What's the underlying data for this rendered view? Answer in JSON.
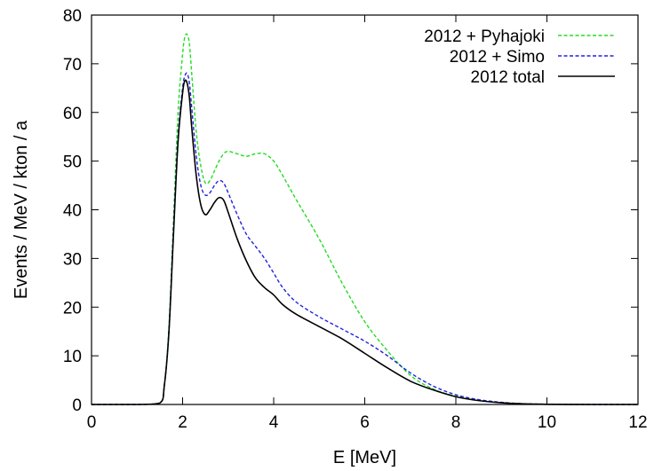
{
  "chart_data": {
    "type": "line",
    "title": "",
    "xlabel": "E [MeV]",
    "ylabel": "Events / MeV / kton / a",
    "xlim": [
      0,
      12
    ],
    "ylim": [
      0,
      80
    ],
    "xticks": [
      0,
      2,
      4,
      6,
      8,
      10,
      12
    ],
    "yticks": [
      0,
      10,
      20,
      30,
      40,
      50,
      60,
      70,
      80
    ],
    "grid": false,
    "legend_position": "top-right",
    "series": [
      {
        "name": "2012 + Pyhajoki",
        "color": "#22dd22",
        "dash": "dashed",
        "x": [
          0,
          1.0,
          1.5,
          1.6,
          1.7,
          1.8,
          1.9,
          2.0,
          2.05,
          2.1,
          2.15,
          2.2,
          2.3,
          2.4,
          2.5,
          2.6,
          2.7,
          2.8,
          2.9,
          3.0,
          3.2,
          3.4,
          3.6,
          3.8,
          4.0,
          4.2,
          4.5,
          5.0,
          5.5,
          6.0,
          6.5,
          7.0,
          7.5,
          8.0,
          8.5,
          9.0,
          9.5,
          10.0,
          10.5,
          11.0,
          12.0
        ],
        "y": [
          0,
          0,
          0.3,
          4,
          16,
          38,
          60,
          72,
          75.5,
          76,
          74,
          68,
          56,
          49,
          45.5,
          46,
          48,
          50,
          51.5,
          52,
          51.5,
          51,
          51.5,
          51.5,
          50,
          47,
          42,
          34,
          25,
          17,
          11,
          6,
          3.2,
          1.7,
          0.9,
          0.4,
          0.15,
          0.05,
          0.02,
          0,
          0
        ]
      },
      {
        "name": "2012 + Simo",
        "color": "#2222dd",
        "dash": "dashed",
        "x": [
          0,
          1.0,
          1.5,
          1.6,
          1.7,
          1.8,
          1.9,
          2.0,
          2.05,
          2.1,
          2.15,
          2.2,
          2.3,
          2.4,
          2.5,
          2.6,
          2.7,
          2.8,
          2.9,
          3.0,
          3.2,
          3.4,
          3.6,
          3.8,
          4.0,
          4.2,
          4.5,
          5.0,
          5.5,
          6.0,
          6.5,
          7.0,
          7.5,
          8.0,
          8.5,
          9.0,
          9.5,
          10.0,
          10.5,
          11.0,
          12.0
        ],
        "y": [
          0,
          0,
          0.3,
          4,
          15,
          36,
          55,
          65,
          67.5,
          68,
          66,
          61,
          51,
          45,
          43,
          43.5,
          45,
          46,
          45.5,
          43.5,
          39,
          35,
          32.5,
          30,
          27,
          24,
          21,
          18,
          15.5,
          13,
          10,
          6.5,
          3.8,
          2.0,
          1.0,
          0.45,
          0.15,
          0.05,
          0.02,
          0,
          0
        ]
      },
      {
        "name": "2012 total",
        "color": "#000000",
        "dash": "solid",
        "x": [
          0,
          1.0,
          1.5,
          1.6,
          1.7,
          1.8,
          1.9,
          2.0,
          2.05,
          2.1,
          2.15,
          2.2,
          2.3,
          2.4,
          2.5,
          2.6,
          2.7,
          2.8,
          2.9,
          3.0,
          3.2,
          3.4,
          3.6,
          3.8,
          4.0,
          4.2,
          4.5,
          5.0,
          5.5,
          6.0,
          6.5,
          7.0,
          7.5,
          8.0,
          8.5,
          9.0,
          9.5,
          10.0,
          10.5,
          11.0,
          12.0
        ],
        "y": [
          0,
          0,
          0.3,
          4,
          15,
          35,
          54,
          64,
          66.5,
          66,
          63,
          57,
          47,
          41,
          39,
          40,
          41.5,
          42.5,
          42,
          39.5,
          34,
          29.5,
          26,
          24,
          22.5,
          20.5,
          18.5,
          16,
          13.5,
          10.5,
          7.5,
          4.8,
          3.0,
          1.6,
          0.8,
          0.35,
          0.12,
          0.04,
          0.01,
          0,
          0
        ]
      }
    ]
  }
}
